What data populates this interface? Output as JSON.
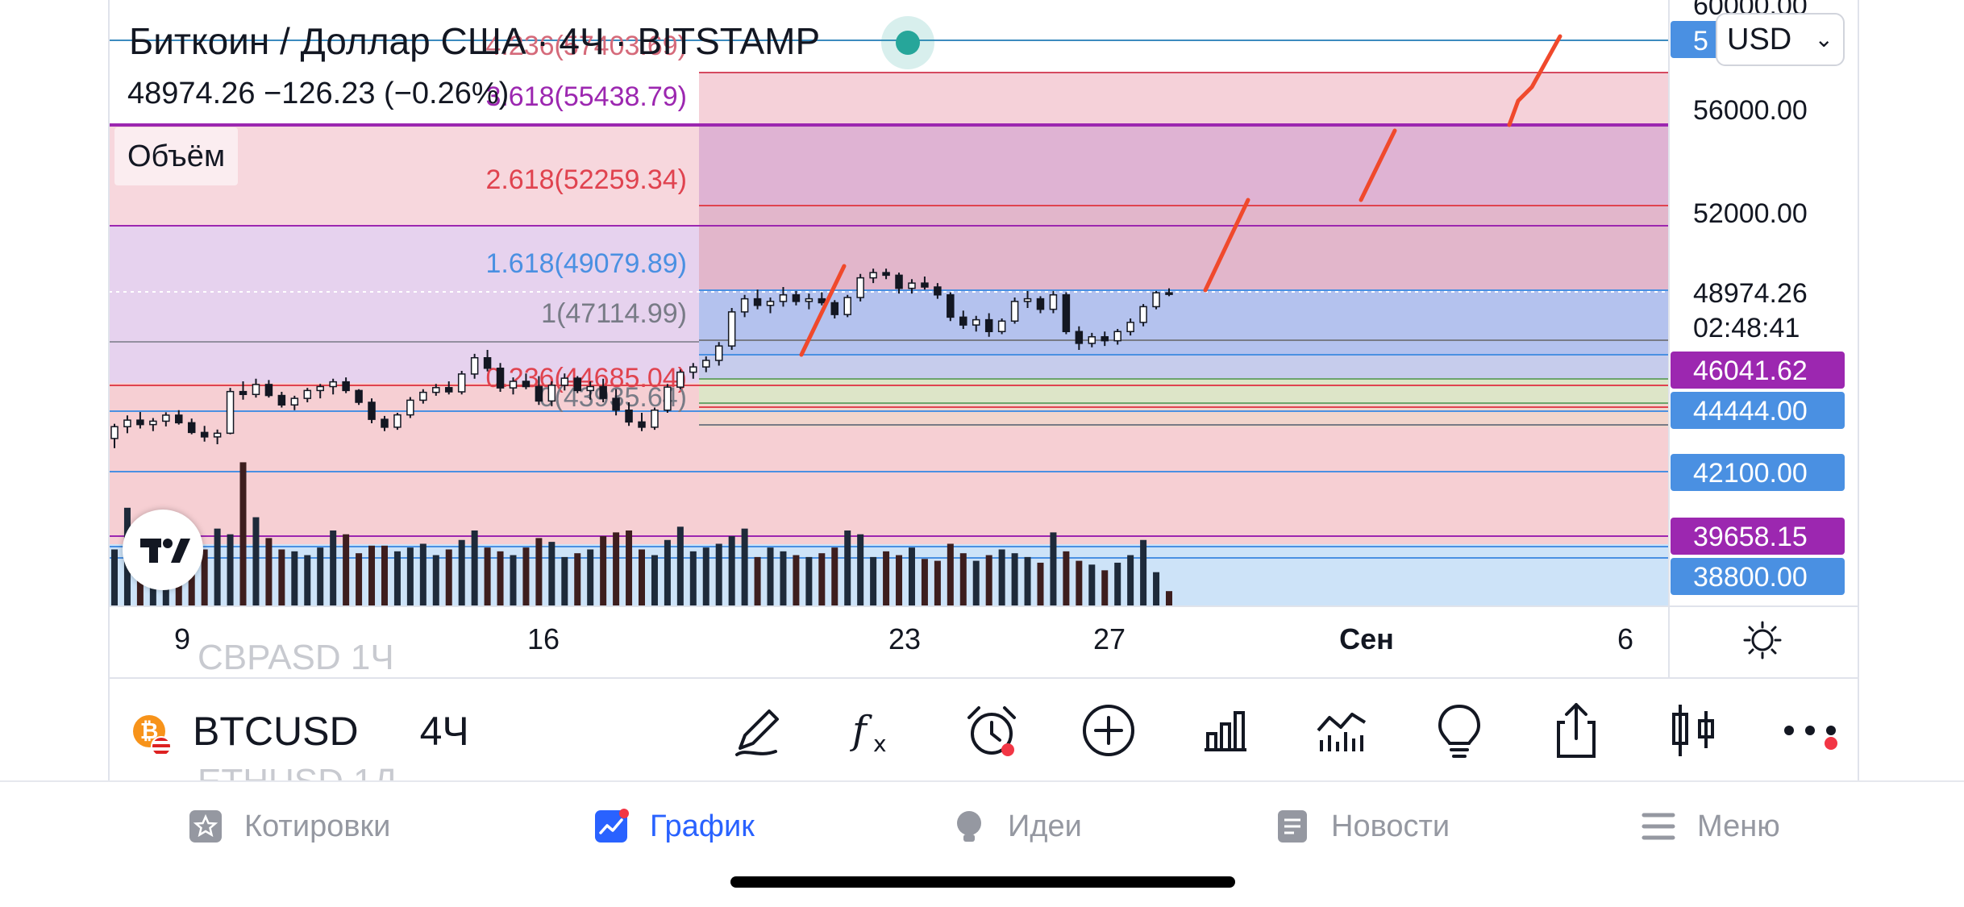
{
  "header": {
    "title": "Биткоин / Доллар США · 4Ч · BITSTAMP",
    "price_line": "48974.26  −126.23 (−0.26%)",
    "volume_label": "Объём",
    "currency": "USD"
  },
  "colors": {
    "candle": "#131722",
    "volume": "#1e2a3a",
    "volume_down": "#3d1e1e",
    "fib_pink_zone": "#f3c6cf",
    "fib_blue_zone": "#b4c2ee",
    "fib_purple_zone": "#e6d2ee",
    "fib_light_blue": "#cde3f8",
    "drawing_red": "#f0492c",
    "label_blue": "#4a90e2",
    "label_purple": "#9c27b0",
    "nav_active": "#2962ff"
  },
  "chart_data": {
    "type": "candlestick",
    "x_ticks": [
      {
        "label": "9",
        "bold": false
      },
      {
        "label": "16",
        "bold": false
      },
      {
        "label": "23",
        "bold": false
      },
      {
        "label": "27",
        "bold": false
      },
      {
        "label": "Сен",
        "bold": true
      },
      {
        "label": "6",
        "bold": false
      }
    ],
    "price_axis_labels": [
      {
        "text": "60000.00",
        "price": 60000,
        "style": "plain"
      },
      {
        "text": "56000.00",
        "price": 56000,
        "style": "plain"
      },
      {
        "text": "52000.00",
        "price": 52000,
        "style": "plain"
      },
      {
        "text": "48974.26",
        "price": 48974.26,
        "style": "plain"
      },
      {
        "text": "02:48:41",
        "price": 48100,
        "style": "plain"
      },
      {
        "text": "46041.62",
        "price": 46041.62,
        "style": "purple"
      },
      {
        "text": "44444.00",
        "price": 44444,
        "style": "blue"
      },
      {
        "text": "42100.00",
        "price": 42100,
        "style": "blue"
      },
      {
        "text": "39658.15",
        "price": 39658.15,
        "style": "purple"
      },
      {
        "text": "38800.00",
        "price": 38800,
        "style": "blue"
      }
    ],
    "fib_levels": [
      {
        "label": "4.236(57403.69)",
        "price": 57403.69,
        "color": "#d56a7a"
      },
      {
        "label": "3.618(55438.79)",
        "price": 55438.79,
        "color": "#9c27b0"
      },
      {
        "label": "2.618(52259.34)",
        "price": 52259.34,
        "color": "#e0434f"
      },
      {
        "label": "1.618(49079.89)",
        "price": 49079.89,
        "color": "#4a90e2"
      },
      {
        "label": "1(47114.99)",
        "price": 47114.99,
        "color": "#787b86"
      },
      {
        "label": "0.236(44685.04)",
        "price": 44685.04,
        "color": "#e0434f"
      },
      {
        "label": "0(43935.64)",
        "price": 43935.64,
        "color": "#787b86"
      }
    ],
    "candles": [
      [
        43420,
        43980,
        43050,
        43870
      ],
      [
        43870,
        44300,
        43620,
        44120
      ],
      [
        44120,
        44430,
        43800,
        43950
      ],
      [
        43950,
        44200,
        43700,
        44080
      ],
      [
        44080,
        44420,
        43880,
        44310
      ],
      [
        44310,
        44500,
        43950,
        44020
      ],
      [
        44020,
        44180,
        43580,
        43650
      ],
      [
        43650,
        43900,
        43300,
        43480
      ],
      [
        43480,
        43760,
        43200,
        43620
      ],
      [
        43620,
        45350,
        43580,
        45210
      ],
      [
        45210,
        45600,
        44900,
        45100
      ],
      [
        45100,
        45700,
        44980,
        45480
      ],
      [
        45480,
        45650,
        44980,
        45060
      ],
      [
        45060,
        45200,
        44600,
        44700
      ],
      [
        44700,
        45050,
        44500,
        44950
      ],
      [
        44950,
        45350,
        44800,
        45250
      ],
      [
        45250,
        45500,
        44950,
        45400
      ],
      [
        45400,
        45700,
        45100,
        45580
      ],
      [
        45580,
        45750,
        45150,
        45250
      ],
      [
        45250,
        45300,
        44700,
        44800
      ],
      [
        44800,
        44950,
        44000,
        44150
      ],
      [
        44150,
        44280,
        43700,
        43850
      ],
      [
        43850,
        44400,
        43750,
        44320
      ],
      [
        44320,
        45000,
        44200,
        44880
      ],
      [
        44880,
        45300,
        44750,
        45180
      ],
      [
        45180,
        45500,
        45050,
        45360
      ],
      [
        45360,
        45600,
        45100,
        45200
      ],
      [
        45200,
        46000,
        45100,
        45880
      ],
      [
        45880,
        46650,
        45700,
        46500
      ],
      [
        46500,
        46800,
        45980,
        46100
      ],
      [
        46100,
        46300,
        45200,
        45350
      ],
      [
        45350,
        45750,
        45100,
        45600
      ],
      [
        45600,
        45900,
        45300,
        45400
      ],
      [
        45400,
        45800,
        44700,
        44850
      ],
      [
        44850,
        45600,
        44650,
        45450
      ],
      [
        45450,
        45900,
        45250,
        45720
      ],
      [
        45720,
        45800,
        45150,
        45250
      ],
      [
        45250,
        45600,
        44900,
        45400
      ],
      [
        45400,
        45700,
        44800,
        44950
      ],
      [
        44950,
        45300,
        44300,
        44500
      ],
      [
        44500,
        44800,
        43900,
        44050
      ],
      [
        44050,
        44400,
        43700,
        43850
      ],
      [
        43850,
        44600,
        43750,
        44500
      ],
      [
        44500,
        45500,
        44400,
        45380
      ],
      [
        45380,
        46050,
        45300,
        45950
      ],
      [
        45950,
        46300,
        45700,
        46150
      ],
      [
        46150,
        46550,
        45950,
        46400
      ],
      [
        46400,
        47100,
        46200,
        46950
      ],
      [
        46950,
        48400,
        46800,
        48250
      ],
      [
        48250,
        48900,
        48050,
        48750
      ],
      [
        48750,
        49100,
        48350,
        48500
      ],
      [
        48500,
        48800,
        48200,
        48650
      ],
      [
        48650,
        49200,
        48450,
        48900
      ],
      [
        48900,
        49050,
        48500,
        48650
      ],
      [
        48650,
        48950,
        48350,
        48750
      ],
      [
        48750,
        49000,
        48500,
        48600
      ],
      [
        48600,
        48700,
        48000,
        48150
      ],
      [
        48150,
        48900,
        48050,
        48800
      ],
      [
        48800,
        49700,
        48650,
        49550
      ],
      [
        49550,
        49900,
        49350,
        49750
      ],
      [
        49750,
        49900,
        49500,
        49650
      ],
      [
        49650,
        49750,
        48950,
        49150
      ],
      [
        49150,
        49500,
        48950,
        49350
      ],
      [
        49350,
        49600,
        49100,
        49200
      ],
      [
        49200,
        49350,
        48750,
        48900
      ],
      [
        48900,
        49000,
        47900,
        48050
      ],
      [
        48050,
        48300,
        47600,
        47750
      ],
      [
        47750,
        48100,
        47500,
        47950
      ],
      [
        47950,
        48200,
        47300,
        47500
      ],
      [
        47500,
        48000,
        47400,
        47900
      ],
      [
        47900,
        48800,
        47800,
        48650
      ],
      [
        48650,
        49050,
        48400,
        48750
      ],
      [
        48750,
        48850,
        48200,
        48350
      ],
      [
        48350,
        49050,
        48200,
        48900
      ],
      [
        48900,
        49000,
        47400,
        47500
      ],
      [
        47500,
        47700,
        46800,
        47050
      ],
      [
        47050,
        47450,
        46900,
        47300
      ],
      [
        47300,
        47500,
        46950,
        47150
      ],
      [
        47150,
        47600,
        47000,
        47500
      ],
      [
        47500,
        48000,
        47350,
        47850
      ],
      [
        47850,
        48550,
        47700,
        48450
      ],
      [
        48450,
        49050,
        48350,
        48980
      ],
      [
        48980,
        49150,
        48850,
        48974
      ]
    ],
    "volumes": [
      30,
      52,
      44,
      37,
      41,
      33,
      27,
      30,
      41,
      38,
      76,
      47,
      36,
      30,
      29,
      27,
      31,
      40,
      38,
      28,
      32,
      32,
      29,
      31,
      33,
      27,
      30,
      35,
      40,
      31,
      29,
      27,
      31,
      36,
      34,
      26,
      28,
      30,
      37,
      39,
      40,
      30,
      27,
      35,
      42,
      29,
      31,
      33,
      37,
      41,
      26,
      31,
      29,
      27,
      26,
      28,
      31,
      40,
      38,
      26,
      29,
      27,
      31,
      25,
      24,
      33,
      28,
      24,
      27,
      30,
      28,
      26,
      23,
      39,
      29,
      24,
      22,
      19,
      23,
      27,
      35,
      18,
      8
    ]
  },
  "toolbar": {
    "symbol": "BTCUSD",
    "interval": "4Ч",
    "ghost_above": "CBPASD       1Ч",
    "ghost_below": "ETHUSD      1Д",
    "coin_glyph": "₿",
    "tools": [
      "pen-icon",
      "formula-icon",
      "alert-clock-icon",
      "add-circle-icon",
      "bar-chart-icon",
      "indicators-icon",
      "ideas-bulb-icon",
      "share-icon",
      "candles-icon",
      "more-icon"
    ]
  },
  "nav": {
    "items": [
      {
        "label": "Котировки",
        "icon": "star-icon"
      },
      {
        "label": "График",
        "icon": "chart-icon",
        "active": true
      },
      {
        "label": "Идеи",
        "icon": "bulb-icon"
      },
      {
        "label": "Новости",
        "icon": "news-icon"
      },
      {
        "label": "Меню",
        "icon": "menu-icon"
      }
    ]
  }
}
